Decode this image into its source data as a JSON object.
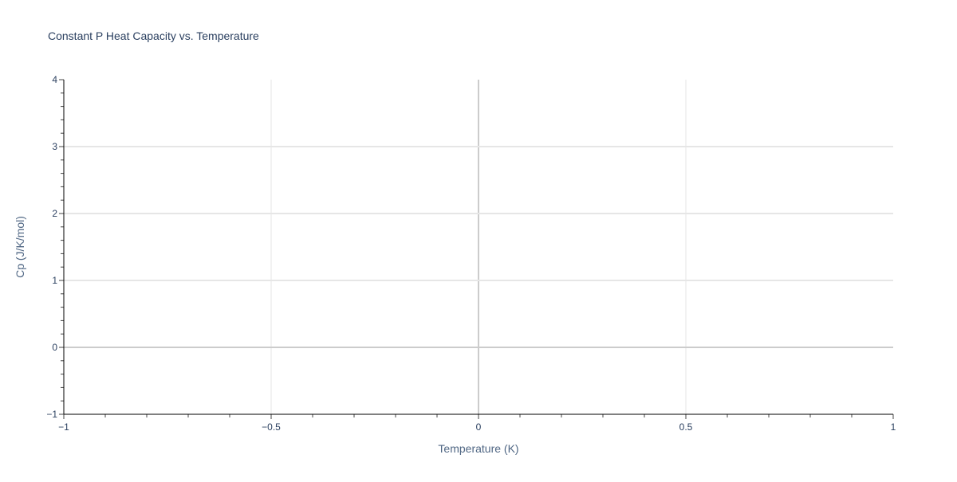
{
  "chart_data": {
    "type": "line",
    "title": "Constant P Heat Capacity vs. Temperature",
    "xlabel": "Temperature (K)",
    "ylabel": "Cp (J/K/mol)",
    "xlim": [
      -1,
      1
    ],
    "ylim": [
      -1,
      4
    ],
    "x_ticks": [
      -1,
      -0.5,
      0,
      0.5,
      1
    ],
    "x_tick_labels": [
      "−1",
      "−0.5",
      "0",
      "0.5",
      "1"
    ],
    "y_ticks": [
      -1,
      0,
      1,
      2,
      3,
      4
    ],
    "y_tick_labels": [
      "−1",
      "0",
      "1",
      "2",
      "3",
      "4"
    ],
    "x_minor_step": 0.1,
    "y_minor_step": 0.2,
    "grid": true,
    "series": [],
    "colors": {
      "text": "#2a3f5f",
      "grid": "#e6e6e6",
      "zeroline": "#cccccc",
      "axis": "#000000"
    }
  }
}
